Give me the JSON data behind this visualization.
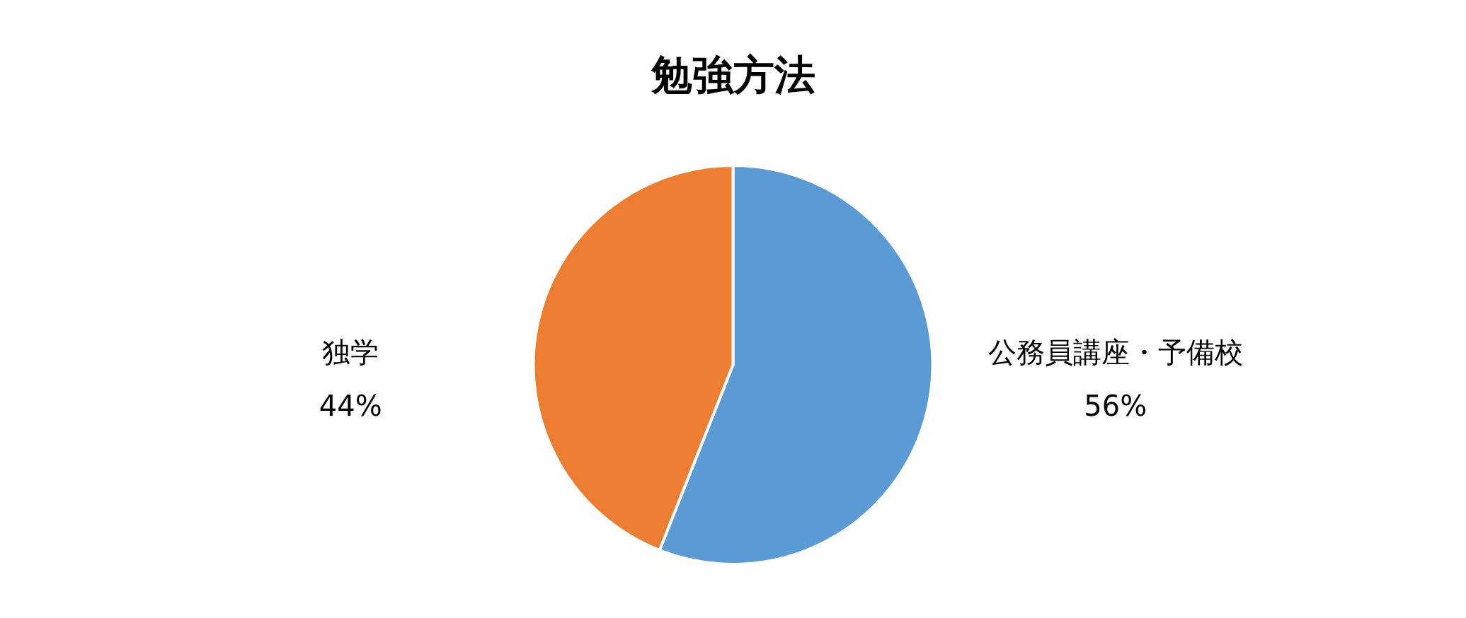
{
  "chart_data": {
    "type": "pie",
    "title": "勉強方法",
    "categories": [
      "公務員講座・予備校",
      "独学"
    ],
    "values": [
      56,
      44
    ],
    "value_labels": [
      "56%",
      "44%"
    ],
    "colors": [
      "#5b9bd5",
      "#ed7d31"
    ],
    "legend": false
  }
}
